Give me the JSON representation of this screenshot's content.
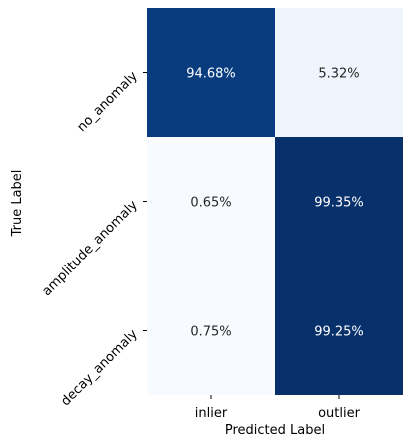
{
  "chart_data": {
    "type": "heatmap",
    "title": "",
    "xlabel": "Predicted Label",
    "ylabel": "True Label",
    "x_categories": [
      "inlier",
      "outlier"
    ],
    "y_categories": [
      "no_anomaly",
      "amplitude_anomaly",
      "decay_anomaly"
    ],
    "values": [
      [
        94.68,
        5.32
      ],
      [
        0.65,
        99.35
      ],
      [
        0.75,
        99.25
      ]
    ],
    "cell_labels": [
      [
        "94.68%",
        "5.32%"
      ],
      [
        "0.65%",
        "99.35%"
      ],
      [
        "0.75%",
        "99.25%"
      ]
    ],
    "colormap": "Blues",
    "color_low": "#f7fbff",
    "color_high": "#08306b",
    "colorbar": false
  }
}
